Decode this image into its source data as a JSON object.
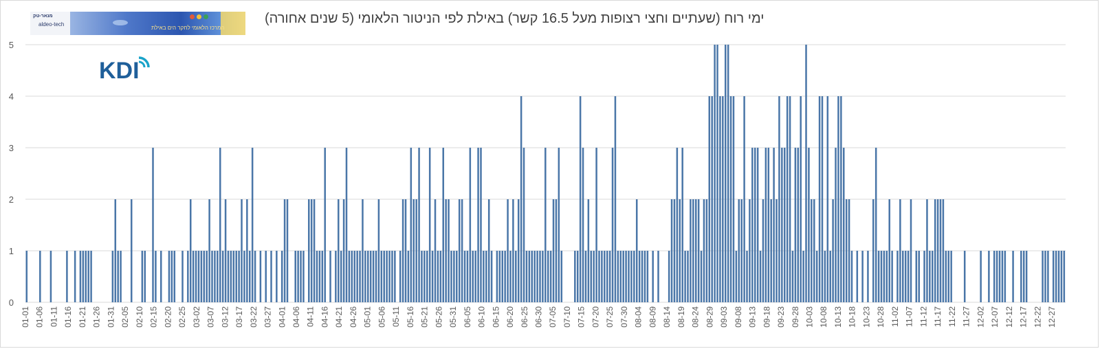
{
  "header": {
    "title": "ימי רוח (שעתיים וחצי רצופות מעל 16.5 קשר) באילת לפי הניטור הלאומי (5 שנים אחורה)",
    "banner_text": [
      "מנאר-טק",
      "aldeo-tech",
      "המרכז הלאומי לחקר הים באילת"
    ],
    "logo_text": "KDI"
  },
  "colors": {
    "bar": "#4a76a8",
    "grid": "#d9d9d9",
    "axis_text": "#595959",
    "logo": "#1f5f9a",
    "logo_arc": "#1aa3c9"
  },
  "chart_data": {
    "type": "bar",
    "title": "ימי רוח (שעתיים וחצי רצופות מעל 16.5 קשר) באילת לפי הניטור הלאומי (5 שנים אחורה)",
    "xlabel": "",
    "ylabel": "",
    "ylim": [
      0,
      5
    ],
    "yticks": [
      "0",
      "1",
      "2",
      "3",
      "4",
      "5"
    ],
    "grid": true,
    "legend": "none",
    "tick_labels": [
      "01-01",
      "01-06",
      "01-11",
      "01-16",
      "01-21",
      "01-26",
      "01-31",
      "02-05",
      "02-10",
      "02-15",
      "02-20",
      "02-25",
      "03-02",
      "03-07",
      "03-12",
      "03-17",
      "03-22",
      "03-27",
      "04-01",
      "04-06",
      "04-11",
      "04-16",
      "04-21",
      "04-26",
      "05-01",
      "05-06",
      "05-11",
      "05-16",
      "05-21",
      "05-26",
      "05-31",
      "06-05",
      "06-10",
      "06-15",
      "06-20",
      "06-25",
      "06-30",
      "07-05",
      "07-10",
      "07-15",
      "07-20",
      "07-25",
      "07-30",
      "08-04",
      "08-09",
      "08-14",
      "08-19",
      "08-24",
      "08-29",
      "09-03",
      "09-08",
      "09-13",
      "09-18",
      "09-23",
      "09-28",
      "10-03",
      "10-08",
      "10-13",
      "10-18",
      "10-23",
      "10-28",
      "11-02",
      "11-07",
      "11-12",
      "11-17",
      "11-22",
      "11-27",
      "12-02",
      "12-07",
      "12-12",
      "12-17",
      "12-22",
      "12-27"
    ],
    "values": [
      1,
      0,
      0,
      0,
      0,
      1,
      0,
      0,
      0,
      1,
      0,
      0,
      0,
      0,
      0,
      1,
      0,
      0,
      1,
      0,
      1,
      1,
      1,
      1,
      1,
      0,
      0,
      0,
      0,
      0,
      0,
      0,
      1,
      2,
      1,
      1,
      0,
      0,
      0,
      2,
      0,
      0,
      0,
      1,
      1,
      0,
      0,
      3,
      1,
      0,
      1,
      0,
      0,
      1,
      1,
      1,
      0,
      0,
      1,
      0,
      1,
      2,
      1,
      1,
      1,
      1,
      1,
      1,
      2,
      1,
      1,
      1,
      3,
      1,
      2,
      1,
      1,
      1,
      1,
      1,
      2,
      1,
      2,
      1,
      3,
      1,
      0,
      1,
      0,
      1,
      0,
      1,
      0,
      1,
      0,
      1,
      2,
      2,
      0,
      0,
      1,
      1,
      1,
      1,
      0,
      2,
      2,
      2,
      1,
      1,
      1,
      3,
      0,
      1,
      0,
      1,
      2,
      1,
      2,
      3,
      1,
      1,
      1,
      1,
      1,
      2,
      1,
      1,
      1,
      1,
      1,
      2,
      1,
      1,
      1,
      1,
      1,
      1,
      0,
      1,
      2,
      2,
      1,
      3,
      2,
      2,
      3,
      1,
      1,
      1,
      3,
      1,
      2,
      1,
      1,
      3,
      2,
      2,
      1,
      1,
      1,
      2,
      2,
      1,
      1,
      3,
      1,
      1,
      3,
      3,
      1,
      1,
      2,
      1,
      0,
      1,
      1,
      1,
      1,
      2,
      1,
      2,
      1,
      2,
      4,
      3,
      1,
      1,
      1,
      1,
      1,
      1,
      1,
      3,
      1,
      1,
      2,
      2,
      3,
      1,
      0,
      0,
      0,
      0,
      1,
      1,
      4,
      3,
      1,
      2,
      1,
      1,
      3,
      1,
      1,
      1,
      1,
      1,
      3,
      4,
      1,
      1,
      1,
      1,
      1,
      1,
      1,
      2,
      1,
      1,
      1,
      1,
      0,
      1,
      0,
      1,
      0,
      0,
      0,
      1,
      2,
      2,
      3,
      2,
      3,
      1,
      1,
      2,
      2,
      2,
      2,
      1,
      2,
      2,
      4,
      4,
      5,
      5,
      4,
      4,
      5,
      5,
      4,
      4,
      1,
      2,
      2,
      4,
      1,
      2,
      3,
      3,
      3,
      1,
      2,
      3,
      3,
      2,
      3,
      2,
      4,
      3,
      3,
      4,
      4,
      1,
      3,
      3,
      4,
      1,
      5,
      3,
      2,
      2,
      1,
      4,
      4,
      1,
      4,
      1,
      2,
      3,
      4,
      4,
      3,
      2,
      2,
      1,
      0,
      1,
      0,
      1,
      0,
      1,
      0,
      2,
      3,
      1,
      1,
      1,
      1,
      2,
      1,
      0,
      1,
      2,
      1,
      1,
      1,
      2,
      0,
      1,
      1,
      0,
      1,
      2,
      1,
      1,
      2,
      2,
      2,
      2,
      1,
      1,
      1,
      0,
      0,
      0,
      0,
      1,
      0,
      0,
      0,
      0,
      0,
      1,
      0,
      0,
      1,
      0,
      1,
      1,
      1,
      1,
      1,
      0,
      0,
      1,
      0,
      0,
      1,
      1,
      1,
      0,
      0,
      0,
      0,
      0,
      1,
      1,
      1,
      0,
      1,
      1,
      1,
      1,
      1
    ]
  }
}
